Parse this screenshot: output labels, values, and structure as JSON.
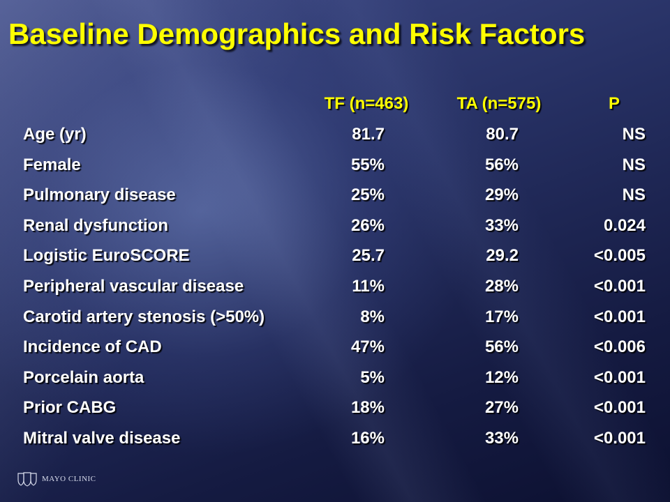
{
  "slide": {
    "title": "Baseline Demographics and Risk Factors",
    "columns": [
      "TF (n=463)",
      "TA (n=575)",
      "P"
    ],
    "rows": [
      {
        "label": "Age (yr)",
        "tf": "81.7",
        "ta": "80.7",
        "p": "NS"
      },
      {
        "label": "Female",
        "tf": "55%",
        "ta": "56%",
        "p": "NS"
      },
      {
        "label": "Pulmonary disease",
        "tf": "25%",
        "ta": "29%",
        "p": "NS"
      },
      {
        "label": "Renal dysfunction",
        "tf": "26%",
        "ta": "33%",
        "p": "0.024"
      },
      {
        "label": "Logistic EuroSCORE",
        "tf": "25.7",
        "ta": "29.2",
        "p": "<0.005"
      },
      {
        "label": "Peripheral vascular disease",
        "tf": "11%",
        "ta": "28%",
        "p": "<0.001"
      },
      {
        "label": "Carotid artery stenosis (>50%)",
        "tf": "8%",
        "ta": "17%",
        "p": "<0.001"
      },
      {
        "label": "Incidence of CAD",
        "tf": "47%",
        "ta": "56%",
        "p": "<0.006"
      },
      {
        "label": "Porcelain aorta",
        "tf": "5%",
        "ta": "12%",
        "p": "<0.001"
      },
      {
        "label": "Prior CABG",
        "tf": "18%",
        "ta": "27%",
        "p": "<0.001"
      },
      {
        "label": "Mitral valve disease",
        "tf": "16%",
        "ta": "33%",
        "p": "<0.001"
      }
    ]
  },
  "logo": {
    "text": "MAYO CLINIC",
    "icon": "mayo-shields-icon"
  },
  "colors": {
    "title": "#ffff00",
    "header": "#ffff00",
    "body_text": "#ffffff",
    "background_dark": "#151b42"
  }
}
